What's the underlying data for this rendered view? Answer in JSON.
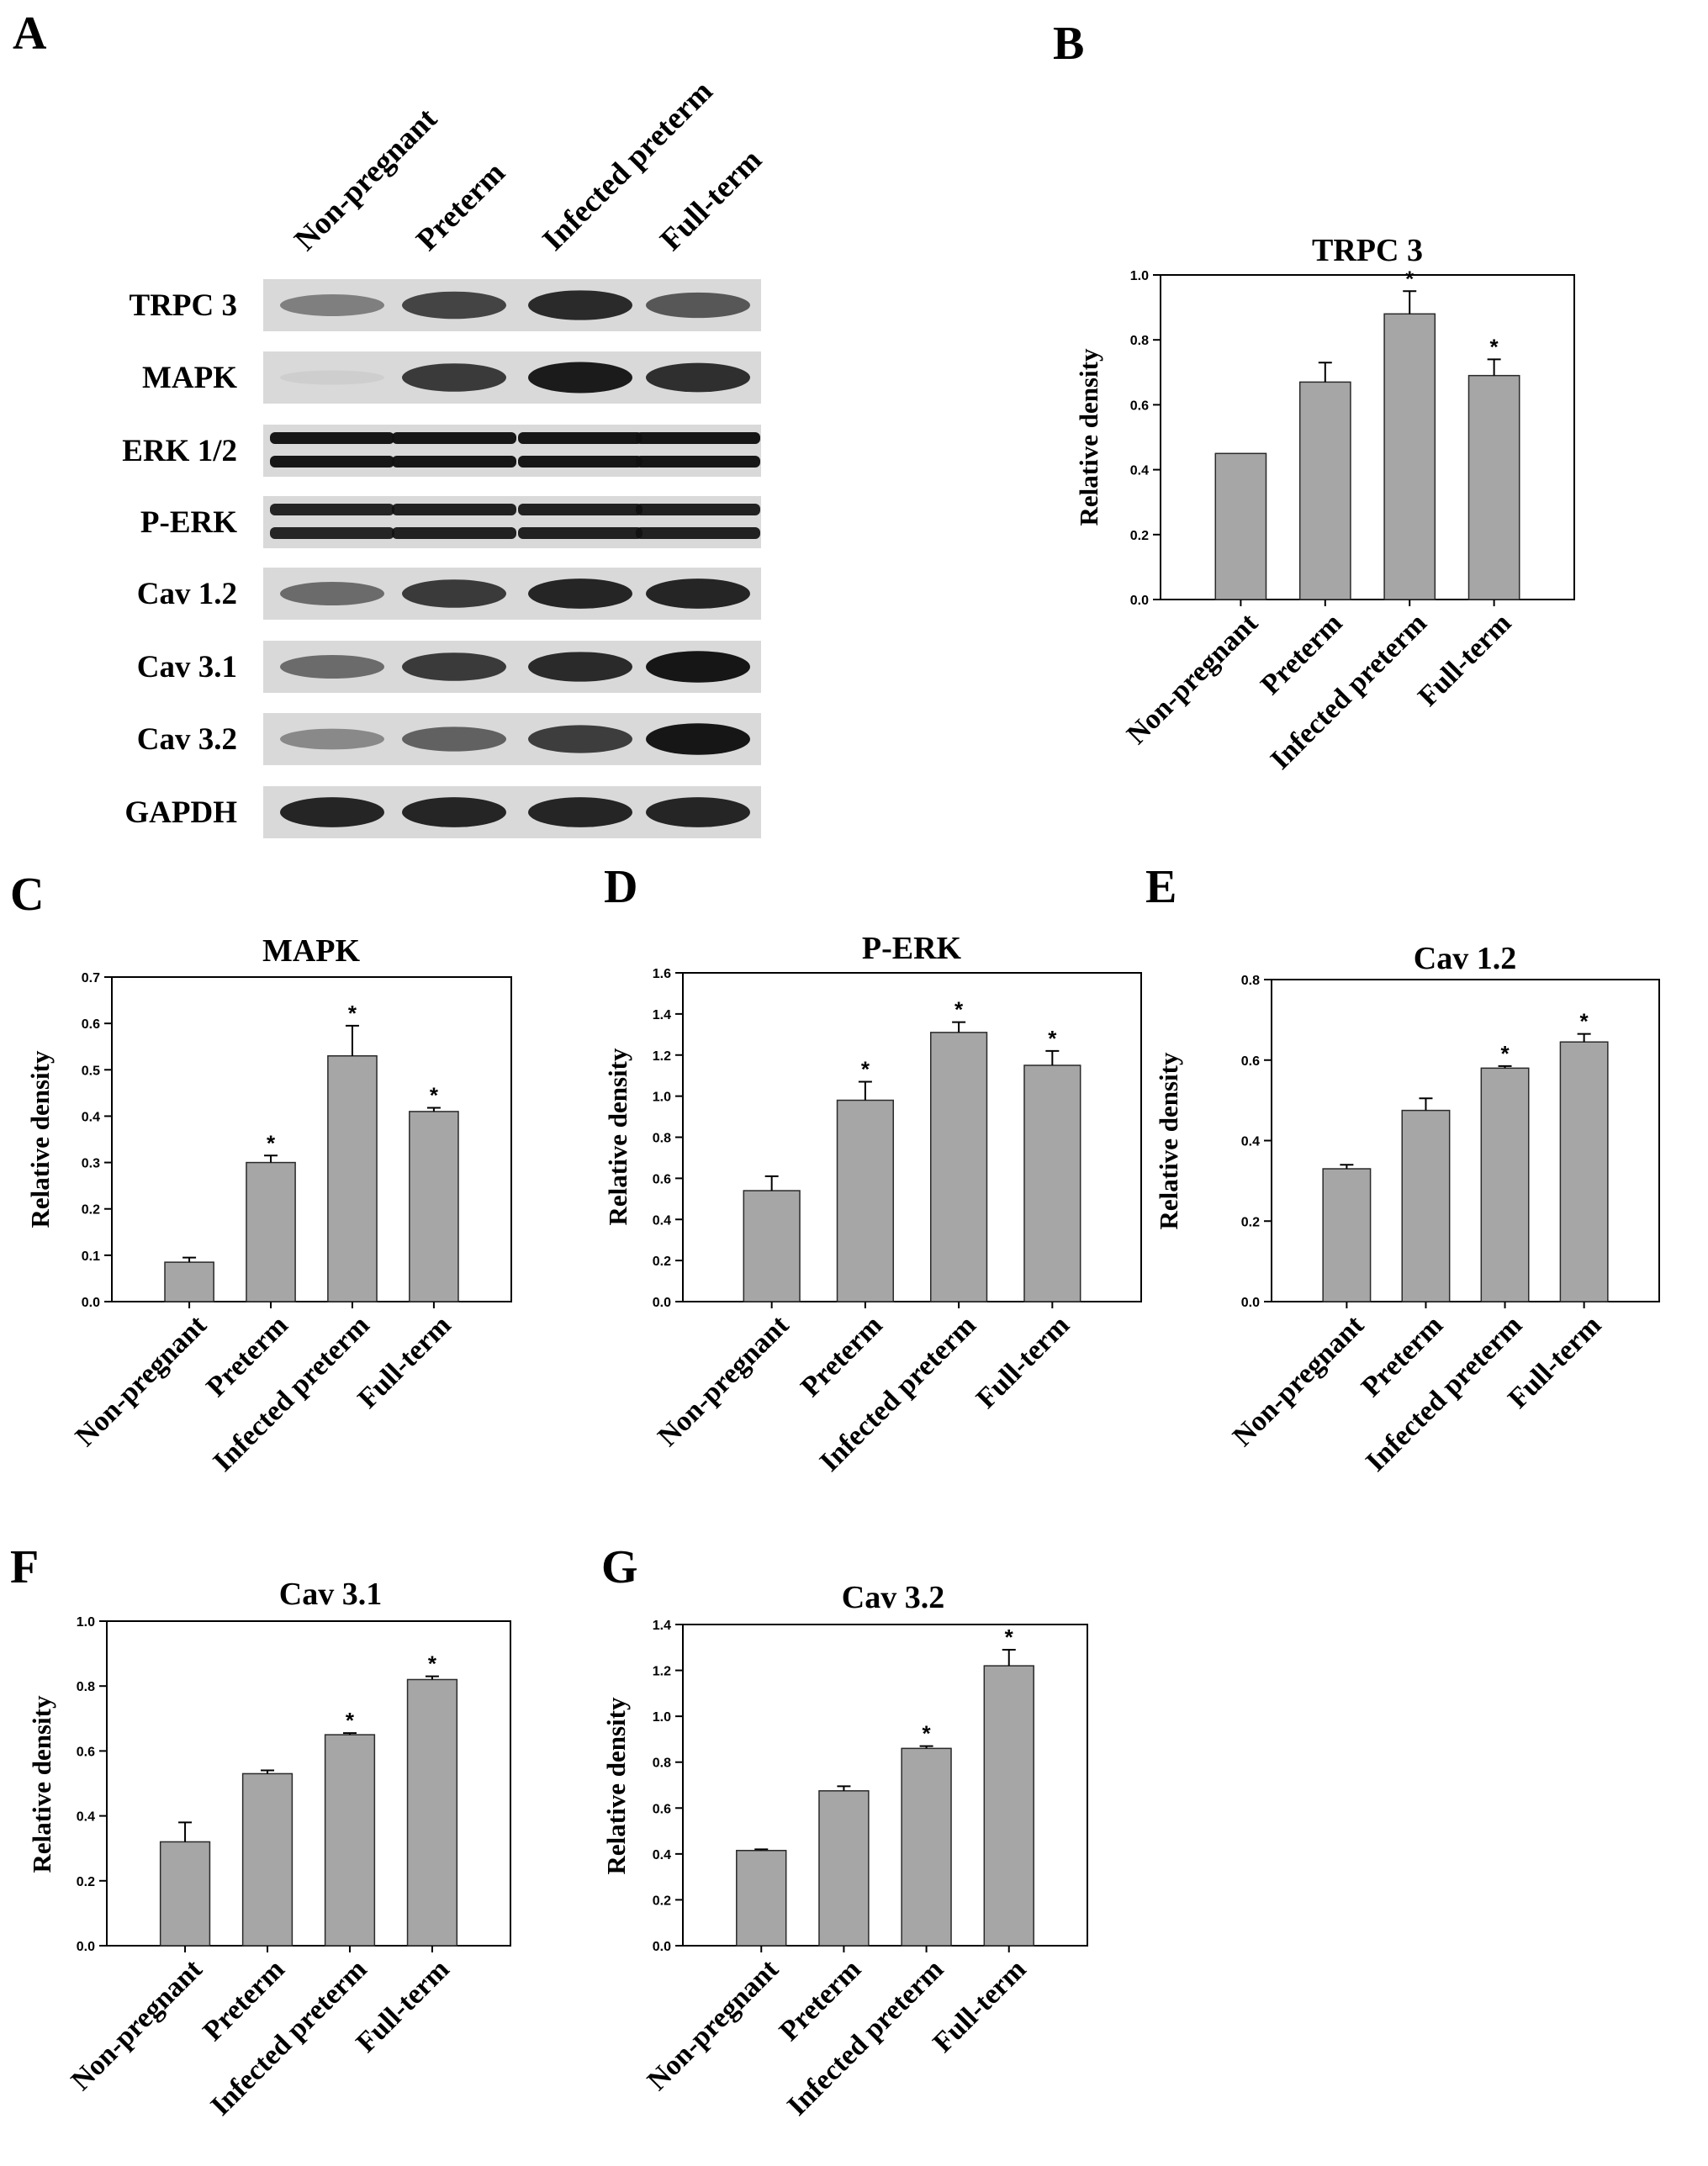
{
  "colors": {
    "bar_fill": "#a6a6a6",
    "bar_stroke": "#2a2a2a",
    "axis": "#000000",
    "blot_bg": "#d9d9d9",
    "band": "#111111"
  },
  "blot": {
    "letter": "A",
    "lanes": [
      "Non-pregnant",
      "Preterm",
      "Infected preterm",
      "Full-term"
    ],
    "rows": [
      {
        "name": "TRPC 3",
        "intensity": [
          0.45,
          0.75,
          0.88,
          0.65
        ]
      },
      {
        "name": "MAPK",
        "intensity": [
          0.05,
          0.8,
          0.95,
          0.85
        ]
      },
      {
        "name": "ERK 1/2",
        "intensity": [
          0.98,
          0.98,
          0.98,
          0.98
        ]
      },
      {
        "name": "P-ERK",
        "intensity": [
          0.9,
          0.92,
          0.92,
          0.92
        ]
      },
      {
        "name": "Cav 1.2",
        "intensity": [
          0.55,
          0.8,
          0.9,
          0.9
        ]
      },
      {
        "name": "Cav 3.1",
        "intensity": [
          0.55,
          0.8,
          0.88,
          0.98
        ]
      },
      {
        "name": "Cav 3.2",
        "intensity": [
          0.4,
          0.6,
          0.78,
          0.98
        ]
      },
      {
        "name": "GAPDH",
        "intensity": [
          0.9,
          0.9,
          0.9,
          0.9
        ]
      }
    ]
  },
  "chart_data": [
    {
      "id": "B",
      "letter": "B",
      "type": "bar",
      "title": "TRPC 3",
      "ylabel": "Relative density",
      "categories": [
        "Non-pregnant",
        "Preterm",
        "Infected preterm",
        "Full-term"
      ],
      "values": [
        0.45,
        0.67,
        0.88,
        0.69
      ],
      "errors": [
        0.0,
        0.06,
        0.07,
        0.05
      ],
      "significant": [
        false,
        false,
        true,
        true
      ],
      "ylim": [
        0,
        1.0
      ],
      "yticks": [
        "0.0",
        "0.2",
        "0.4",
        "0.6",
        "0.8",
        "1.0"
      ]
    },
    {
      "id": "C",
      "letter": "C",
      "type": "bar",
      "title": "MAPK",
      "ylabel": "Relative density",
      "categories": [
        "Non-pregnant",
        "Preterm",
        "Infected preterm",
        "Full-term"
      ],
      "values": [
        0.085,
        0.3,
        0.53,
        0.41
      ],
      "errors": [
        0.01,
        0.015,
        0.065,
        0.008
      ],
      "significant": [
        false,
        true,
        true,
        true
      ],
      "ylim": [
        0,
        0.7
      ],
      "yticks": [
        "0.0",
        "0.1",
        "0.2",
        "0.3",
        "0.4",
        "0.5",
        "0.6",
        "0.7"
      ]
    },
    {
      "id": "D",
      "letter": "D",
      "type": "bar",
      "title": "P-ERK",
      "ylabel": "Relative density",
      "categories": [
        "Non-pregnant",
        "Preterm",
        "Infected preterm",
        "Full-term"
      ],
      "values": [
        0.54,
        0.98,
        1.31,
        1.15
      ],
      "errors": [
        0.07,
        0.09,
        0.05,
        0.07
      ],
      "significant": [
        false,
        true,
        true,
        true
      ],
      "ylim": [
        0,
        1.6
      ],
      "yticks": [
        "0.0",
        "0.2",
        "0.4",
        "0.6",
        "0.8",
        "1.0",
        "1.2",
        "1.4",
        "1.6"
      ]
    },
    {
      "id": "E",
      "letter": "E",
      "type": "bar",
      "title": "Cav 1.2",
      "ylabel": "Relative density",
      "categories": [
        "Non-pregnant",
        "Preterm",
        "Infected preterm",
        "Full-term"
      ],
      "values": [
        0.33,
        0.475,
        0.58,
        0.645
      ],
      "errors": [
        0.01,
        0.03,
        0.005,
        0.02
      ],
      "significant": [
        false,
        false,
        true,
        true
      ],
      "ylim": [
        0,
        0.8
      ],
      "yticks": [
        "0.0",
        "0.2",
        "0.4",
        "0.6",
        "0.8"
      ]
    },
    {
      "id": "F",
      "letter": "F",
      "type": "bar",
      "title": "Cav 3.1",
      "ylabel": "Relative density",
      "categories": [
        "Non-pregnant",
        "Preterm",
        "Infected preterm",
        "Full-term"
      ],
      "values": [
        0.32,
        0.53,
        0.65,
        0.82
      ],
      "errors": [
        0.06,
        0.01,
        0.005,
        0.01
      ],
      "significant": [
        false,
        false,
        true,
        true
      ],
      "ylim": [
        0,
        1.0
      ],
      "yticks": [
        "0.0",
        "0.2",
        "0.4",
        "0.6",
        "0.8",
        "1.0"
      ]
    },
    {
      "id": "G",
      "letter": "G",
      "type": "bar",
      "title": "Cav 3.2",
      "ylabel": "Relative density",
      "categories": [
        "Non-pregnant",
        "Preterm",
        "Infected preterm",
        "Full-term"
      ],
      "values": [
        0.415,
        0.675,
        0.86,
        1.22
      ],
      "errors": [
        0.005,
        0.02,
        0.01,
        0.07
      ],
      "significant": [
        false,
        false,
        true,
        true
      ],
      "ylim": [
        0,
        1.4
      ],
      "yticks": [
        "0.0",
        "0.2",
        "0.4",
        "0.6",
        "0.8",
        "1.0",
        "1.2",
        "1.4"
      ]
    }
  ]
}
